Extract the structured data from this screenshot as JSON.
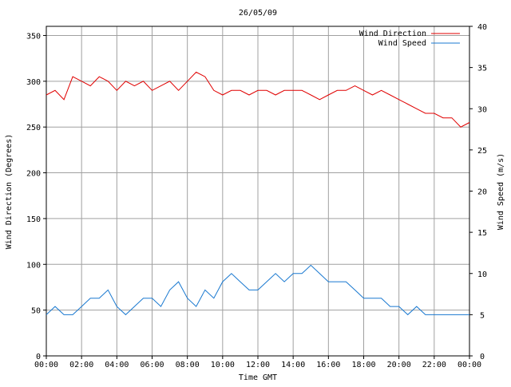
{
  "chart_data": {
    "type": "line",
    "title": "26/05/09",
    "xlabel": "Time GMT",
    "ylabel_left": "Wind Direction (Degrees)",
    "ylabel_right": "Wind Speed (m/s)",
    "x_range_hours": [
      0,
      24
    ],
    "x_ticks": [
      "00:00",
      "02:00",
      "04:00",
      "06:00",
      "08:00",
      "10:00",
      "12:00",
      "14:00",
      "16:00",
      "18:00",
      "20:00",
      "22:00",
      "00:00"
    ],
    "y_left": {
      "min": 0,
      "max": 360,
      "ticks": [
        0,
        50,
        100,
        150,
        200,
        250,
        300,
        350
      ]
    },
    "y_right": {
      "min": 0,
      "max": 40,
      "ticks": [
        0,
        5,
        10,
        15,
        20,
        25,
        30,
        35,
        40
      ]
    },
    "grid": true,
    "legend_position": "top-right",
    "series": [
      {
        "name": "Wind Direction",
        "color": "#e00000",
        "axis": "left",
        "x_hours": [
          0,
          0.5,
          1,
          1.5,
          2,
          2.5,
          3,
          3.5,
          4,
          4.5,
          5,
          5.5,
          6,
          6.5,
          7,
          7.5,
          8,
          8.5,
          9,
          9.5,
          10,
          10.5,
          11,
          11.5,
          12,
          12.5,
          13,
          13.5,
          14,
          14.5,
          15,
          15.5,
          16,
          16.5,
          17,
          17.5,
          18,
          18.5,
          19,
          19.5,
          20,
          20.5,
          21,
          21.5,
          22,
          22.5,
          23,
          23.5,
          24
        ],
        "values": [
          285,
          290,
          280,
          305,
          300,
          295,
          305,
          300,
          290,
          300,
          295,
          300,
          290,
          295,
          300,
          290,
          300,
          310,
          305,
          290,
          285,
          290,
          290,
          285,
          290,
          290,
          285,
          290,
          290,
          290,
          285,
          280,
          285,
          290,
          290,
          295,
          290,
          285,
          290,
          285,
          280,
          275,
          270,
          265,
          265,
          260,
          260,
          250,
          255
        ]
      },
      {
        "name": "Wind Speed",
        "color": "#1878d0",
        "axis": "right",
        "x_hours": [
          0,
          0.5,
          1,
          1.5,
          2,
          2.5,
          3,
          3.5,
          4,
          4.5,
          5,
          5.5,
          6,
          6.5,
          7,
          7.5,
          8,
          8.5,
          9,
          9.5,
          10,
          10.5,
          11,
          11.5,
          12,
          12.5,
          13,
          13.5,
          14,
          14.5,
          15,
          15.5,
          16,
          16.5,
          17,
          17.5,
          18,
          18.5,
          19,
          19.5,
          20,
          20.5,
          21,
          21.5,
          22,
          22.5,
          23,
          23.5,
          24
        ],
        "values": [
          5,
          6,
          5,
          5,
          6,
          7,
          7,
          8,
          6,
          5,
          6,
          7,
          7,
          6,
          8,
          9,
          7,
          6,
          8,
          7,
          9,
          10,
          9,
          8,
          8,
          9,
          10,
          9,
          10,
          10,
          11,
          10,
          9,
          9,
          9,
          8,
          7,
          7,
          7,
          6,
          6,
          5,
          6,
          5,
          5,
          5,
          5,
          5,
          5
        ]
      }
    ]
  }
}
